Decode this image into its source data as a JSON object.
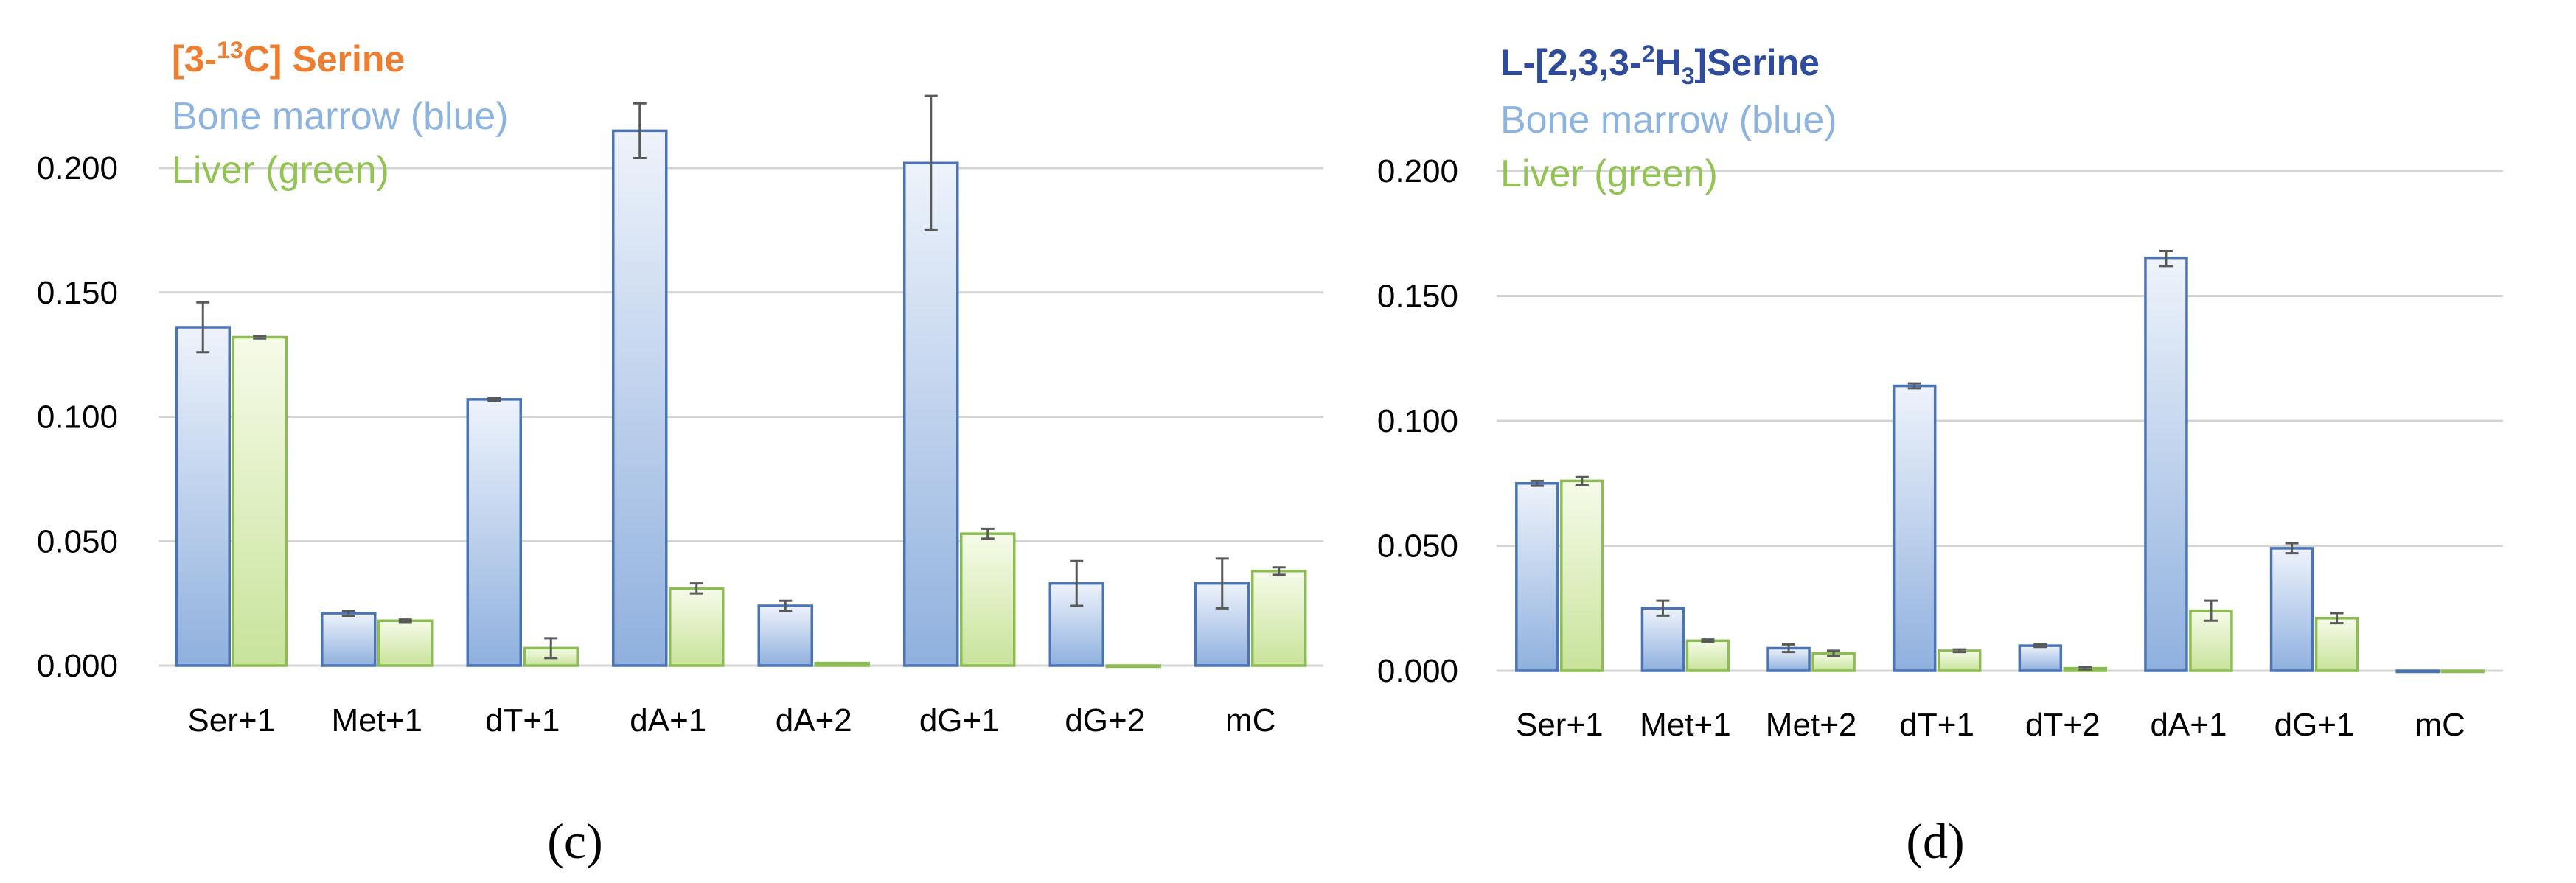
{
  "colors": {
    "blue_fill_top": "#eef3fb",
    "blue_fill_bottom": "#8fb0de",
    "blue_stroke": "#4a74b4",
    "green_fill_top": "#f6fbe9",
    "green_fill_bottom": "#c8e39b",
    "green_stroke": "#8cbd52",
    "grid": "#d4d4d4",
    "error_bar": "#595959",
    "title_c": "#ed7d31",
    "title_d": "#2f4b9c",
    "legend_blue": "#8db4e0",
    "legend_green": "#92c353"
  },
  "chart_data": [
    {
      "type": "bar",
      "panel_label": "(c)",
      "title_parts": [
        "[3-",
        "13",
        "C] Serine"
      ],
      "legend": [
        "Bone marrow (blue)",
        "Liver (green)"
      ],
      "legend_placement": "top-left",
      "ylim": [
        0,
        0.2
      ],
      "yticks": [
        "0.000",
        "0.050",
        "0.100",
        "0.150",
        "0.200"
      ],
      "grid": true,
      "categories": [
        "Ser+1",
        "Met+1",
        "dT+1",
        "dA+1",
        "dA+2",
        "dG+1",
        "dG+2",
        "mC"
      ],
      "series": [
        {
          "name": "Bone marrow (blue)",
          "values": [
            0.136,
            0.021,
            0.107,
            0.215,
            0.024,
            0.202,
            0.033,
            0.033
          ],
          "errors": [
            0.01,
            0.001,
            0.0005,
            0.011,
            0.002,
            0.027,
            0.009,
            0.01
          ]
        },
        {
          "name": "Liver (green)",
          "values": [
            0.132,
            0.018,
            0.007,
            0.031,
            0.001,
            0.053,
            0.0,
            0.038
          ],
          "errors": [
            0.0005,
            0.0005,
            0.004,
            0.002,
            0.0,
            0.002,
            0.0,
            0.0015
          ]
        }
      ]
    },
    {
      "type": "bar",
      "panel_label": "(d)",
      "title_parts": [
        "L-[2,3,3-",
        "2",
        "H",
        "3",
        "]Serine"
      ],
      "legend": [
        "Bone marrow (blue)",
        "Liver (green)"
      ],
      "legend_placement": "top-left",
      "ylim": [
        0,
        0.2
      ],
      "yticks": [
        "0.000",
        "0.050",
        "0.100",
        "0.150",
        "0.200"
      ],
      "grid": true,
      "categories": [
        "Ser+1",
        "Met+1",
        "Met+2",
        "dT+1",
        "dT+2",
        "dA+1",
        "dG+1",
        "mC"
      ],
      "series": [
        {
          "name": "Bone marrow (blue)",
          "values": [
            0.075,
            0.025,
            0.009,
            0.114,
            0.01,
            0.165,
            0.049,
            0.0
          ],
          "errors": [
            0.001,
            0.003,
            0.0015,
            0.001,
            0.0005,
            0.003,
            0.002,
            0.0
          ]
        },
        {
          "name": "Liver (green)",
          "values": [
            0.076,
            0.012,
            0.007,
            0.008,
            0.001,
            0.024,
            0.021,
            0.0
          ],
          "errors": [
            0.0015,
            0.0005,
            0.001,
            0.0005,
            0.0005,
            0.004,
            0.002,
            0.0
          ]
        }
      ]
    }
  ]
}
